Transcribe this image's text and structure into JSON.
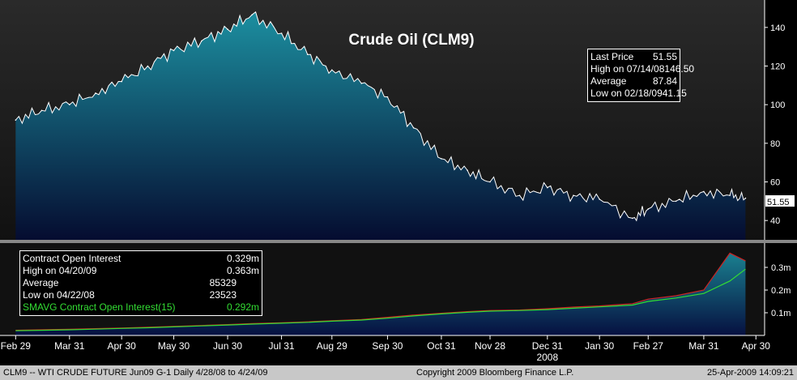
{
  "chart_data": [
    {
      "type": "area",
      "title": "Crude Oil (CLM9)",
      "x": [
        "2008-02-29",
        "2008-03-15",
        "2008-03-31",
        "2008-04-15",
        "2008-04-30",
        "2008-05-15",
        "2008-05-30",
        "2008-06-15",
        "2008-06-30",
        "2008-07-14",
        "2008-07-31",
        "2008-08-15",
        "2008-08-29",
        "2008-09-15",
        "2008-09-30",
        "2008-10-15",
        "2008-10-31",
        "2008-11-15",
        "2008-11-28",
        "2008-12-15",
        "2008-12-31",
        "2009-01-15",
        "2009-01-30",
        "2009-02-18",
        "2009-02-27",
        "2009-03-15",
        "2009-03-31",
        "2009-04-15",
        "2009-04-24"
      ],
      "values": [
        92,
        97,
        100,
        106,
        112,
        120,
        128,
        133,
        139,
        146.5,
        137,
        126,
        118,
        111,
        104,
        88,
        72,
        66,
        60,
        53,
        57,
        53,
        51,
        41.15,
        46,
        50,
        55,
        53,
        51.55
      ],
      "ylim": [
        30,
        150
      ],
      "yticks": [
        40,
        60,
        80,
        100,
        120,
        140
      ],
      "last_price_tag": "51.55",
      "stats": {
        "rows": [
          {
            "label": "Last Price",
            "value": "51.55"
          },
          {
            "label": "High on  07/14/08",
            "value": "146.50"
          },
          {
            "label": "Average",
            "value": "87.84"
          },
          {
            "label": "Low on  02/18/09",
            "value": "41.15"
          }
        ]
      },
      "colors": {
        "fill_top": "#1c8fa0",
        "fill_bottom": "#050c30",
        "line": "#ffffff"
      }
    },
    {
      "type": "area",
      "series": [
        {
          "name": "Contract Open Interest",
          "values": [
            0.023,
            0.025,
            0.027,
            0.03,
            0.033,
            0.036,
            0.04,
            0.044,
            0.048,
            0.052,
            0.056,
            0.06,
            0.065,
            0.07,
            0.08,
            0.09,
            0.098,
            0.105,
            0.11,
            0.112,
            0.118,
            0.125,
            0.13,
            0.14,
            0.16,
            0.175,
            0.2,
            0.363,
            0.329
          ],
          "color": "#cc2222"
        },
        {
          "name": "SMAVG Contract Open Interest(15)",
          "values": [
            0.021,
            0.023,
            0.025,
            0.028,
            0.031,
            0.034,
            0.038,
            0.042,
            0.046,
            0.05,
            0.054,
            0.058,
            0.063,
            0.068,
            0.076,
            0.086,
            0.095,
            0.102,
            0.107,
            0.11,
            0.114,
            0.12,
            0.126,
            0.134,
            0.15,
            0.165,
            0.185,
            0.24,
            0.292
          ],
          "color": "#33dd33"
        }
      ],
      "ylim": [
        0,
        0.4
      ],
      "yticks": [
        "0.1m",
        "0.2m",
        "0.3m"
      ],
      "stats": {
        "rows": [
          {
            "label": "Contract Open Interest",
            "value": "0.329m"
          },
          {
            "label": "High on  04/20/09",
            "value": "0.363m"
          },
          {
            "label": "Average",
            "value": "85329"
          },
          {
            "label": "Low on  04/22/08",
            "value": "23523"
          },
          {
            "label": "SMAVG Contract Open Interest(15)",
            "value": "0.292m"
          }
        ]
      }
    }
  ],
  "x_axis": {
    "ticks": [
      "Feb 29",
      "Mar 31",
      "Apr 30",
      "May 30",
      "Jun 30",
      "Jul 31",
      "Aug 29",
      "Sep 30",
      "Oct 31",
      "Nov 28",
      "Dec 31",
      "Jan 30",
      "Feb 27",
      "Mar 31",
      "Apr 30"
    ],
    "year_label": "2008"
  },
  "footer": {
    "left": "CLM9 -- WTI CRUDE FUTURE  Jun09    G-1   Daily  4/28/08 to 4/24/09",
    "center": "Copyright 2009 Bloomberg Finance L.P.",
    "right": "25-Apr-2009 14:09:21"
  }
}
